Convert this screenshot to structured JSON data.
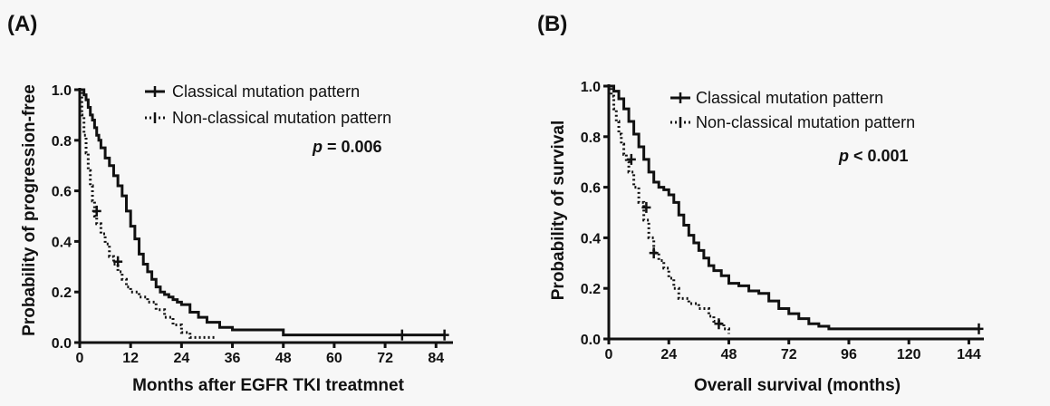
{
  "chart_data": [
    {
      "type": "line",
      "panel_label": "(A)",
      "xlabel": "Months after EGFR TKI treatmnet",
      "ylabel": "Probability of progression-free",
      "xlim": [
        0,
        88
      ],
      "ylim": [
        0,
        1.0
      ],
      "xticks": [
        0,
        12,
        24,
        36,
        48,
        60,
        72,
        84
      ],
      "yticks": [
        0.0,
        0.2,
        0.4,
        0.6,
        0.8,
        1.0
      ],
      "yticklabels": [
        "0.0",
        "0.2",
        "0.4",
        "0.6",
        "0.8",
        "1.0"
      ],
      "pvalue": {
        "symbol": "p",
        "text": " = 0.006"
      },
      "legend": {
        "placement": "top-right"
      },
      "series": [
        {
          "name": "Classical mutation pattern",
          "style": "solid",
          "x": [
            0,
            1,
            1.5,
            2,
            2.5,
            3,
            3.5,
            4,
            4.5,
            5,
            6,
            7,
            8,
            9,
            10,
            11,
            12,
            13,
            14,
            15,
            16,
            17,
            18,
            19,
            20,
            21,
            22,
            23,
            24,
            26,
            28,
            30,
            33,
            36,
            40,
            44,
            48,
            60,
            72,
            76,
            84,
            86
          ],
          "y": [
            1.0,
            0.98,
            0.96,
            0.93,
            0.9,
            0.88,
            0.85,
            0.82,
            0.8,
            0.77,
            0.73,
            0.7,
            0.66,
            0.62,
            0.58,
            0.52,
            0.46,
            0.41,
            0.35,
            0.31,
            0.28,
            0.25,
            0.22,
            0.2,
            0.19,
            0.18,
            0.17,
            0.16,
            0.15,
            0.12,
            0.1,
            0.08,
            0.06,
            0.05,
            0.05,
            0.05,
            0.03,
            0.03,
            0.03,
            0.03,
            0.03,
            0.03
          ],
          "censored": [
            [
              76,
              0.03
            ],
            [
              86,
              0.03
            ]
          ]
        },
        {
          "name": "Non-classical mutation pattern",
          "style": "dotted",
          "x": [
            0,
            0.5,
            1,
            1.5,
            2,
            2.5,
            3,
            3.5,
            4,
            5,
            6,
            7,
            8,
            9,
            10,
            11,
            12,
            14,
            16,
            18,
            20,
            22,
            24,
            26,
            28,
            30,
            32
          ],
          "y": [
            1.0,
            0.9,
            0.82,
            0.75,
            0.68,
            0.62,
            0.56,
            0.5,
            0.47,
            0.43,
            0.39,
            0.34,
            0.31,
            0.28,
            0.25,
            0.22,
            0.2,
            0.18,
            0.16,
            0.13,
            0.1,
            0.07,
            0.04,
            0.02,
            0.02,
            0.02,
            0.02
          ],
          "censored": [
            [
              4,
              0.52
            ],
            [
              9,
              0.32
            ]
          ]
        }
      ]
    },
    {
      "type": "line",
      "panel_label": "(B)",
      "xlabel": "Overall survival (months)",
      "ylabel": "Probability of survival",
      "xlim": [
        0,
        150
      ],
      "ylim": [
        0,
        1.0
      ],
      "xticks": [
        0,
        24,
        48,
        72,
        96,
        120,
        144
      ],
      "yticks": [
        0.0,
        0.2,
        0.4,
        0.6,
        0.8,
        1.0
      ],
      "yticklabels": [
        "0.0",
        "0.2",
        "0.4",
        "0.6",
        "0.8",
        "1.0"
      ],
      "pvalue": {
        "symbol": "p",
        "text": " < 0.001"
      },
      "legend": {
        "placement": "top-right"
      },
      "series": [
        {
          "name": "Classical mutation pattern",
          "style": "solid",
          "x": [
            0,
            2,
            4,
            6,
            8,
            10,
            12,
            14,
            16,
            18,
            20,
            22,
            24,
            26,
            28,
            30,
            32,
            34,
            36,
            38,
            40,
            42,
            45,
            48,
            52,
            56,
            60,
            64,
            68,
            72,
            76,
            80,
            84,
            88,
            96,
            120,
            144,
            148
          ],
          "y": [
            1.0,
            0.98,
            0.95,
            0.91,
            0.86,
            0.81,
            0.76,
            0.71,
            0.66,
            0.62,
            0.6,
            0.59,
            0.57,
            0.54,
            0.49,
            0.45,
            0.41,
            0.38,
            0.35,
            0.32,
            0.29,
            0.27,
            0.25,
            0.22,
            0.21,
            0.19,
            0.18,
            0.15,
            0.12,
            0.1,
            0.08,
            0.06,
            0.05,
            0.04,
            0.04,
            0.04,
            0.04,
            0.04
          ],
          "censored": [
            [
              148,
              0.04
            ]
          ]
        },
        {
          "name": "Non-classical mutation pattern",
          "style": "dotted",
          "x": [
            0,
            1,
            2,
            3,
            4,
            5,
            6,
            7,
            8,
            10,
            12,
            14,
            16,
            18,
            20,
            22,
            24,
            26,
            28,
            32,
            36,
            40,
            42,
            44,
            46,
            48
          ],
          "y": [
            1.0,
            0.96,
            0.91,
            0.86,
            0.81,
            0.77,
            0.73,
            0.7,
            0.66,
            0.6,
            0.54,
            0.47,
            0.4,
            0.34,
            0.31,
            0.28,
            0.24,
            0.2,
            0.16,
            0.14,
            0.12,
            0.09,
            0.07,
            0.06,
            0.04,
            0.02
          ],
          "censored": [
            [
              9,
              0.71
            ],
            [
              15,
              0.52
            ],
            [
              18,
              0.34
            ],
            [
              44,
              0.06
            ]
          ]
        }
      ]
    }
  ]
}
